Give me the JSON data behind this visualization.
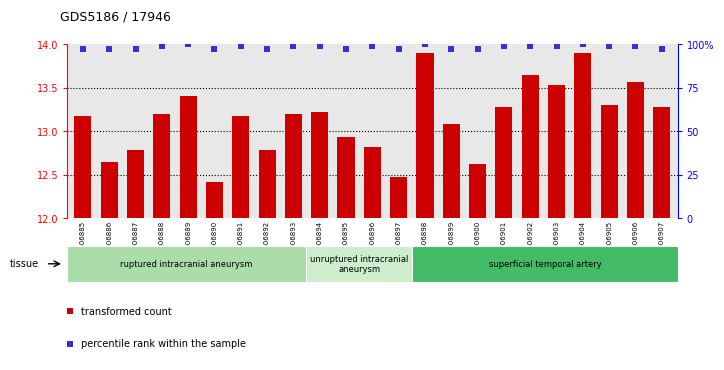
{
  "title": "GDS5186 / 17946",
  "samples": [
    "GSM1306885",
    "GSM1306886",
    "GSM1306887",
    "GSM1306888",
    "GSM1306889",
    "GSM1306890",
    "GSM1306891",
    "GSM1306892",
    "GSM1306893",
    "GSM1306894",
    "GSM1306895",
    "GSM1306896",
    "GSM1306897",
    "GSM1306898",
    "GSM1306899",
    "GSM1306900",
    "GSM1306901",
    "GSM1306902",
    "GSM1306903",
    "GSM1306904",
    "GSM1306905",
    "GSM1306906",
    "GSM1306907"
  ],
  "transformed_count": [
    13.18,
    12.65,
    12.78,
    13.2,
    13.4,
    12.42,
    13.18,
    12.78,
    13.2,
    13.22,
    12.93,
    12.82,
    12.47,
    13.9,
    13.08,
    12.62,
    13.28,
    13.65,
    13.53,
    13.9,
    13.3,
    13.57,
    13.28
  ],
  "percentile_rank": [
    97,
    97,
    97,
    99,
    100,
    97,
    99,
    97,
    99,
    99,
    97,
    99,
    97,
    100,
    97,
    97,
    99,
    99,
    99,
    100,
    99,
    99,
    97
  ],
  "ylim_left": [
    12,
    14
  ],
  "ylim_right": [
    0,
    100
  ],
  "yticks_left": [
    12,
    12.5,
    13,
    13.5,
    14
  ],
  "yticks_right": [
    0,
    25,
    50,
    75,
    100
  ],
  "ytick_labels_right": [
    "0",
    "25",
    "50",
    "75",
    "100%"
  ],
  "bar_color": "#cc0000",
  "dot_color": "#3333cc",
  "bg_color": "#e8e8e8",
  "groups": [
    {
      "label": "ruptured intracranial aneurysm",
      "start": 0,
      "end": 9,
      "color": "#aaddaa"
    },
    {
      "label": "unruptured intracranial\naneurysm",
      "start": 9,
      "end": 13,
      "color": "#cceecc"
    },
    {
      "label": "superficial temporal artery",
      "start": 13,
      "end": 23,
      "color": "#44bb66"
    }
  ],
  "tissue_label": "tissue",
  "legend_bar_label": "transformed count",
  "legend_dot_label": "percentile rank within the sample",
  "dot_size": 4
}
